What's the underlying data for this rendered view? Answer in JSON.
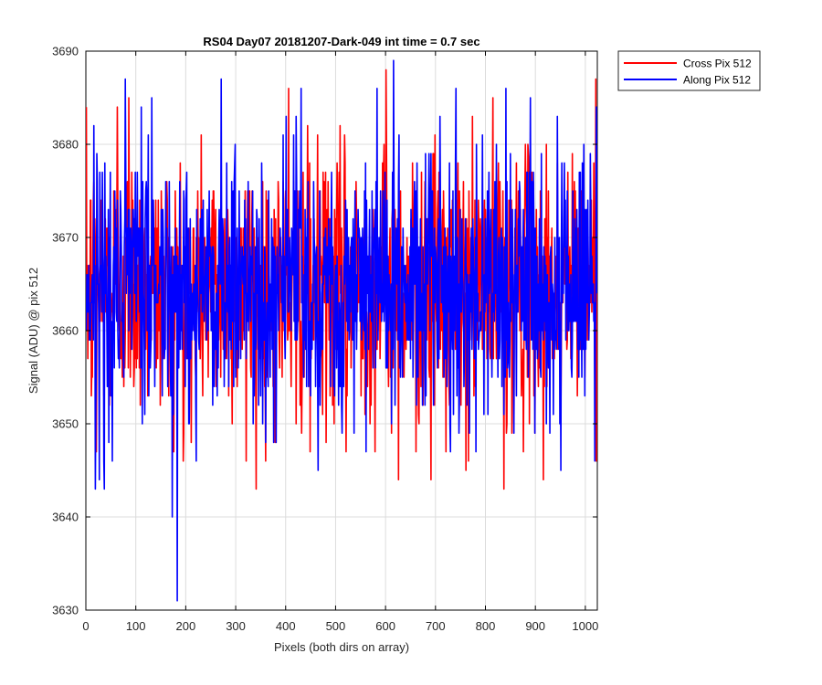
{
  "chart_data": {
    "type": "line",
    "title": "RS04 Day07 20181207-Dark-049 int time = 0.7 sec",
    "xlabel": "Pixels (both dirs on array)",
    "ylabel": "Signal (ADU) @ pix 512",
    "xlim": [
      0,
      1024
    ],
    "ylim": [
      3630,
      3690
    ],
    "xticks": [
      0,
      100,
      200,
      300,
      400,
      500,
      600,
      700,
      800,
      900,
      1000
    ],
    "yticks": [
      3630,
      3640,
      3650,
      3660,
      3670,
      3680,
      3690
    ],
    "xtick_labels": [
      "0",
      "100",
      "200",
      "300",
      "400",
      "500",
      "600",
      "700",
      "800",
      "900",
      "1000"
    ],
    "ytick_labels": [
      "3630",
      "3640",
      "3650",
      "3660",
      "3670",
      "3680",
      "3690"
    ],
    "grid": true,
    "legend_position": "outside-top-right",
    "series": [
      {
        "name": "Cross Pix 512",
        "color": "#ff0000",
        "noise": {
          "mean": 3665,
          "std": 7,
          "min": 3643,
          "max": 3688,
          "n_points": 1024
        },
        "spikes": [
          [
            10,
            3653
          ],
          [
            20,
            3647
          ],
          [
            62,
            3684
          ],
          [
            85,
            3685
          ],
          [
            175,
            3647
          ],
          [
            195,
            3649
          ],
          [
            210,
            3648
          ],
          [
            320,
            3646
          ],
          [
            340,
            3643
          ],
          [
            405,
            3686
          ],
          [
            420,
            3650
          ],
          [
            448,
            3647
          ],
          [
            520,
            3647
          ],
          [
            600,
            3688
          ],
          [
            625,
            3644
          ],
          [
            660,
            3647
          ],
          [
            690,
            3644
          ],
          [
            720,
            3647
          ],
          [
            760,
            3645
          ],
          [
            836,
            3643
          ],
          [
            915,
            3644
          ],
          [
            950,
            3651
          ],
          [
            1020,
            3687
          ]
        ]
      },
      {
        "name": "Along Pix 512",
        "color": "#0000ff",
        "noise": {
          "mean": 3665,
          "std": 7,
          "min": 3631,
          "max": 3689,
          "n_points": 1024
        },
        "spikes": [
          [
            15,
            3682
          ],
          [
            18,
            3643
          ],
          [
            35,
            3646
          ],
          [
            45,
            3648
          ],
          [
            52,
            3646
          ],
          [
            110,
            3684
          ],
          [
            182,
            3631
          ],
          [
            205,
            3650
          ],
          [
            270,
            3687
          ],
          [
            375,
            3648
          ],
          [
            400,
            3683
          ],
          [
            430,
            3686
          ],
          [
            512,
            3649
          ],
          [
            560,
            3647
          ],
          [
            582,
            3686
          ],
          [
            615,
            3689
          ],
          [
            740,
            3686
          ],
          [
            780,
            3647
          ],
          [
            840,
            3686
          ],
          [
            950,
            3645
          ],
          [
            1018,
            3646
          ]
        ]
      }
    ]
  }
}
